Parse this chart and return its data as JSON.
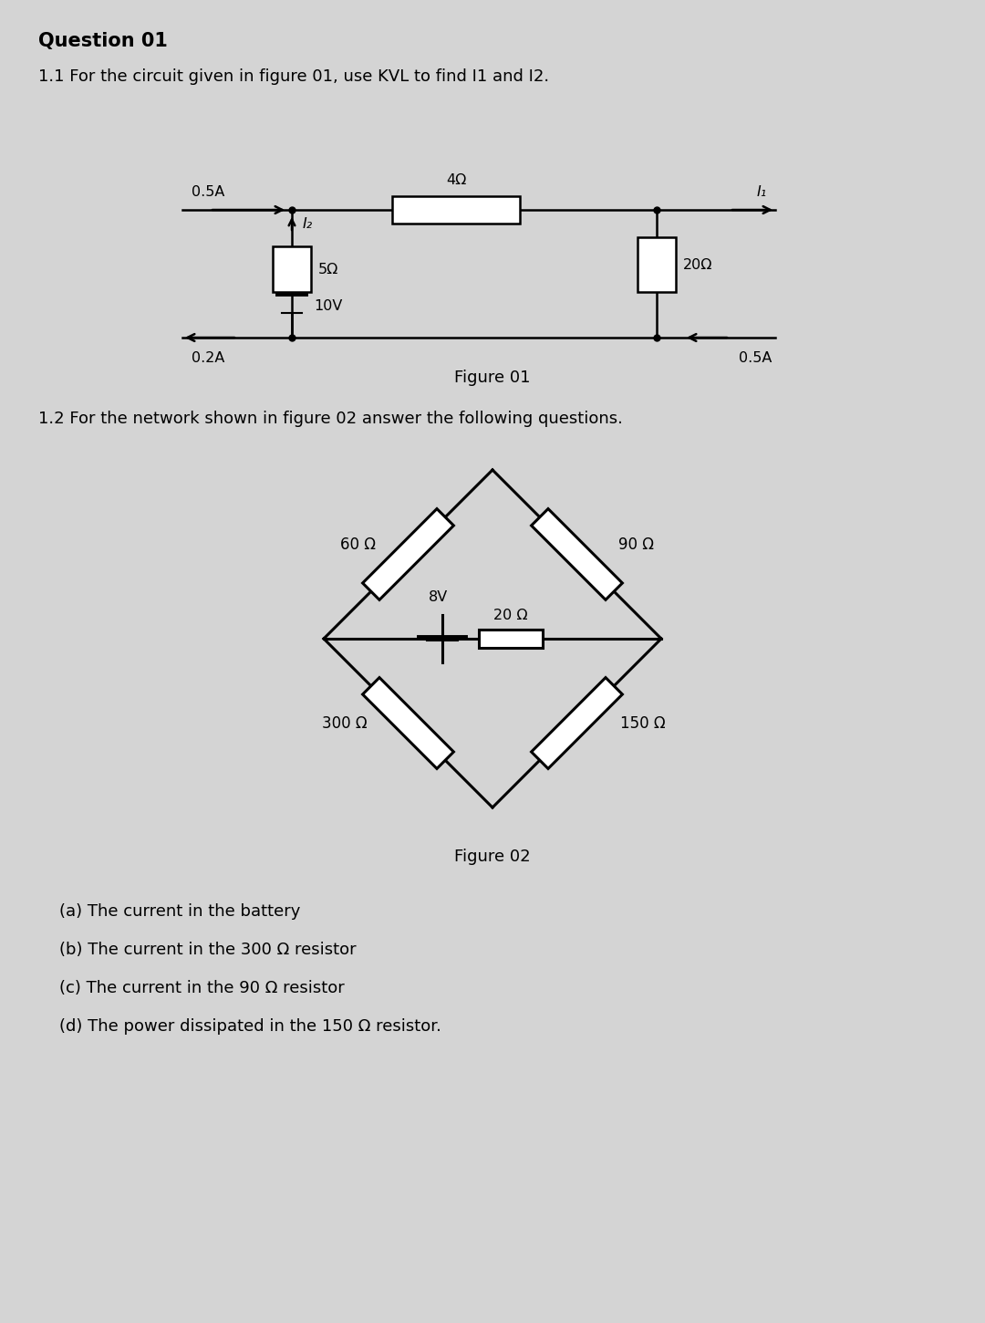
{
  "bg_color": "#d4d4d4",
  "title": "Question 01",
  "q1_text": "1.1 For the circuit given in figure 01, use KVL to find I1 and I2.",
  "q2_text": "1.2 For the network shown in figure 02 answer the following questions.",
  "fig1_caption": "Figure 01",
  "fig2_caption": "Figure 02",
  "sub_questions": [
    "(a) The current in the battery",
    "(b) The current in the 300 Ω resistor",
    "(c) The current in the 90 Ω resistor",
    "(d) The power dissipated in the 150 Ω resistor."
  ],
  "fig1": {
    "res4_label": "4Ω",
    "res5_label": "5Ω",
    "res20_label": "20Ω",
    "v10_label": "10V",
    "i1_label": "I₁",
    "i2_label": "I₂",
    "cur05a_top": "0.5A",
    "cur02a_bot": "0.2A",
    "cur05a_bot_right": "0.5A"
  },
  "fig2": {
    "res60_label": "60 Ω",
    "res90_label": "90 Ω",
    "res300_label": "300 Ω",
    "res150_label": "150 Ω",
    "res20_label": "20 Ω",
    "v8_label": "8V"
  }
}
